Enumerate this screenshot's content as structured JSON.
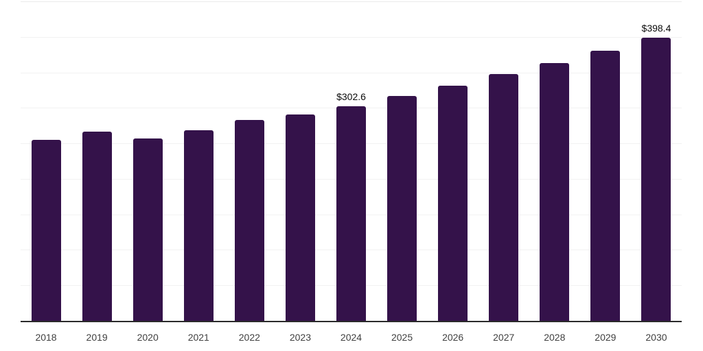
{
  "page": {
    "background": "#ffffff"
  },
  "colors": {
    "bar": "#34124a",
    "axis_line": "#2a2a2a",
    "gridline": "#f2f2f2",
    "gridline_top": "#eaeaea",
    "tick_label": "#404040",
    "value_label": "#0a0a0a"
  },
  "chart_data": {
    "type": "bar",
    "title": "",
    "xlabel": "",
    "ylabel": "",
    "categories": [
      "2018",
      "2019",
      "2020",
      "2021",
      "2022",
      "2023",
      "2024",
      "2025",
      "2026",
      "2027",
      "2028",
      "2029",
      "2030"
    ],
    "values": [
      254.8,
      266.6,
      257.0,
      268.3,
      282.7,
      291.0,
      302.6,
      316.8,
      331.7,
      347.2,
      363.5,
      380.5,
      398.4
    ],
    "point_labels": [
      "",
      "",
      "",
      "",
      "",
      "",
      "$302.6",
      "",
      "",
      "",
      "",
      "",
      "$398.4"
    ],
    "ylim": [
      0,
      450
    ],
    "ytick_interval": 50,
    "ytick_labels_visible": false,
    "grid": "horizontal",
    "legend": "none",
    "currency": "USD"
  }
}
